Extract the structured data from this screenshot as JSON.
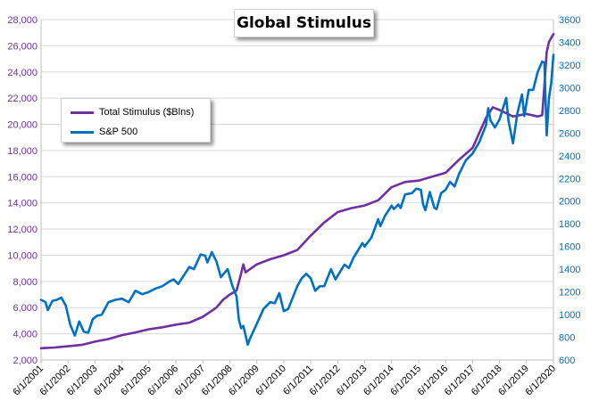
{
  "chart_data": {
    "type": "line",
    "title": "Global Stimulus",
    "xlabel": "",
    "ylabel": "",
    "x_tick_labels": [
      "6/1/2001",
      "6/1/2002",
      "6/1/2003",
      "6/1/2004",
      "6/1/2005",
      "6/1/2006",
      "6/1/2007",
      "6/1/2008",
      "6/1/2009",
      "6/1/2010",
      "6/1/2011",
      "6/1/2012",
      "6/1/2013",
      "6/1/2014",
      "6/1/2015",
      "6/1/2016",
      "6/1/2017",
      "6/1/2018",
      "6/1/2019",
      "6/1/2020"
    ],
    "y_left": {
      "min": 2000,
      "max": 28000,
      "step": 2000,
      "tick_labels": [
        "2,000",
        "4,000",
        "6,000",
        "8,000",
        "10,000",
        "12,000",
        "14,000",
        "16,000",
        "18,000",
        "20,000",
        "22,000",
        "24,000",
        "26,000",
        "28,000"
      ],
      "color": "#7030a0"
    },
    "y_right": {
      "min": 600,
      "max": 3600,
      "step": 200,
      "tick_labels": [
        "600",
        "800",
        "1000",
        "1200",
        "1400",
        "1600",
        "1800",
        "2000",
        "2200",
        "2400",
        "2600",
        "2800",
        "3000",
        "3200",
        "3400",
        "3600"
      ],
      "color": "#0070c0"
    },
    "legend": {
      "placement": "top-left"
    },
    "grid": "horizontal",
    "series": [
      {
        "name": "Total Stimulus ($Blns)",
        "axis": "left",
        "color": "#7030a0",
        "points": [
          [
            "2001-06",
            2900
          ],
          [
            "2001-12",
            2950
          ],
          [
            "2002-06",
            3050
          ],
          [
            "2002-12",
            3150
          ],
          [
            "2003-06",
            3400
          ],
          [
            "2003-12",
            3600
          ],
          [
            "2004-06",
            3900
          ],
          [
            "2004-12",
            4100
          ],
          [
            "2005-06",
            4350
          ],
          [
            "2005-12",
            4500
          ],
          [
            "2006-06",
            4700
          ],
          [
            "2006-12",
            4850
          ],
          [
            "2007-06",
            5300
          ],
          [
            "2007-12",
            6000
          ],
          [
            "2008-03",
            6600
          ],
          [
            "2008-06",
            7000
          ],
          [
            "2008-09",
            7300
          ],
          [
            "2008-11",
            8600
          ],
          [
            "2008-12",
            9300
          ],
          [
            "2009-01",
            8700
          ],
          [
            "2009-06",
            9300
          ],
          [
            "2009-12",
            9700
          ],
          [
            "2010-06",
            10000
          ],
          [
            "2010-12",
            10400
          ],
          [
            "2011-06",
            11500
          ],
          [
            "2011-12",
            12500
          ],
          [
            "2012-06",
            13300
          ],
          [
            "2012-12",
            13600
          ],
          [
            "2013-06",
            13800
          ],
          [
            "2013-12",
            14200
          ],
          [
            "2014-06",
            15200
          ],
          [
            "2014-12",
            15600
          ],
          [
            "2015-06",
            15700
          ],
          [
            "2015-12",
            16000
          ],
          [
            "2016-06",
            16300
          ],
          [
            "2016-12",
            17300
          ],
          [
            "2017-06",
            18200
          ],
          [
            "2017-12",
            20500
          ],
          [
            "2018-03",
            21300
          ],
          [
            "2018-06",
            21100
          ],
          [
            "2018-12",
            20600
          ],
          [
            "2019-06",
            20800
          ],
          [
            "2019-11",
            20600
          ],
          [
            "2020-01",
            20700
          ],
          [
            "2020-02",
            23000
          ],
          [
            "2020-03",
            25500
          ],
          [
            "2020-04",
            26300
          ],
          [
            "2020-06",
            26900
          ]
        ]
      },
      {
        "name": "S&P 500",
        "axis": "right",
        "color": "#0070c0",
        "points": [
          [
            "2001-06",
            1130
          ],
          [
            "2001-08",
            1110
          ],
          [
            "2001-09",
            1040
          ],
          [
            "2001-11",
            1120
          ],
          [
            "2002-01",
            1130
          ],
          [
            "2002-03",
            1150
          ],
          [
            "2002-05",
            1080
          ],
          [
            "2002-07",
            910
          ],
          [
            "2002-09",
            815
          ],
          [
            "2002-11",
            940
          ],
          [
            "2003-01",
            850
          ],
          [
            "2003-03",
            840
          ],
          [
            "2003-05",
            960
          ],
          [
            "2003-07",
            990
          ],
          [
            "2003-09",
            1000
          ],
          [
            "2003-12",
            1110
          ],
          [
            "2004-03",
            1130
          ],
          [
            "2004-06",
            1140
          ],
          [
            "2004-09",
            1110
          ],
          [
            "2004-12",
            1210
          ],
          [
            "2005-03",
            1180
          ],
          [
            "2005-06",
            1200
          ],
          [
            "2005-09",
            1230
          ],
          [
            "2005-12",
            1250
          ],
          [
            "2006-03",
            1290
          ],
          [
            "2006-05",
            1310
          ],
          [
            "2006-07",
            1270
          ],
          [
            "2006-12",
            1420
          ],
          [
            "2007-02",
            1400
          ],
          [
            "2007-05",
            1530
          ],
          [
            "2007-07",
            1520
          ],
          [
            "2007-08",
            1460
          ],
          [
            "2007-10",
            1550
          ],
          [
            "2007-12",
            1470
          ],
          [
            "2008-02",
            1330
          ],
          [
            "2008-05",
            1400
          ],
          [
            "2008-07",
            1260
          ],
          [
            "2008-09",
            1160
          ],
          [
            "2008-10",
            960
          ],
          [
            "2008-11",
            880
          ],
          [
            "2008-12",
            900
          ],
          [
            "2009-02",
            735
          ],
          [
            "2009-03",
            790
          ],
          [
            "2009-06",
            920
          ],
          [
            "2009-09",
            1050
          ],
          [
            "2009-12",
            1110
          ],
          [
            "2010-02",
            1100
          ],
          [
            "2010-04",
            1190
          ],
          [
            "2010-06",
            1030
          ],
          [
            "2010-08",
            1050
          ],
          [
            "2010-12",
            1250
          ],
          [
            "2011-02",
            1320
          ],
          [
            "2011-04",
            1360
          ],
          [
            "2011-06",
            1320
          ],
          [
            "2011-08",
            1210
          ],
          [
            "2011-10",
            1250
          ],
          [
            "2011-12",
            1250
          ],
          [
            "2012-03",
            1400
          ],
          [
            "2012-05",
            1310
          ],
          [
            "2012-09",
            1440
          ],
          [
            "2012-11",
            1410
          ],
          [
            "2013-01",
            1500
          ],
          [
            "2013-05",
            1630
          ],
          [
            "2013-06",
            1600
          ],
          [
            "2013-09",
            1680
          ],
          [
            "2013-12",
            1840
          ],
          [
            "2014-01",
            1780
          ],
          [
            "2014-03",
            1870
          ],
          [
            "2014-06",
            1960
          ],
          [
            "2014-07",
            1930
          ],
          [
            "2014-09",
            1970
          ],
          [
            "2014-10",
            1940
          ],
          [
            "2014-12",
            2060
          ],
          [
            "2015-03",
            2070
          ],
          [
            "2015-05",
            2110
          ],
          [
            "2015-07",
            2100
          ],
          [
            "2015-08",
            1970
          ],
          [
            "2015-09",
            1920
          ],
          [
            "2015-11",
            2080
          ],
          [
            "2016-01",
            1940
          ],
          [
            "2016-02",
            1930
          ],
          [
            "2016-04",
            2070
          ],
          [
            "2016-06",
            2100
          ],
          [
            "2016-08",
            2170
          ],
          [
            "2016-10",
            2130
          ],
          [
            "2016-12",
            2240
          ],
          [
            "2017-03",
            2360
          ],
          [
            "2017-06",
            2420
          ],
          [
            "2017-09",
            2520
          ],
          [
            "2017-12",
            2670
          ],
          [
            "2018-01",
            2820
          ],
          [
            "2018-02",
            2710
          ],
          [
            "2018-04",
            2650
          ],
          [
            "2018-06",
            2720
          ],
          [
            "2018-09",
            2910
          ],
          [
            "2018-10",
            2710
          ],
          [
            "2018-12",
            2510
          ],
          [
            "2019-02",
            2780
          ],
          [
            "2019-04",
            2940
          ],
          [
            "2019-05",
            2750
          ],
          [
            "2019-07",
            2980
          ],
          [
            "2019-09",
            2980
          ],
          [
            "2019-11",
            3140
          ],
          [
            "2020-01",
            3230
          ],
          [
            "2020-02",
            3220
          ],
          [
            "2020-03",
            2580
          ],
          [
            "2020-04",
            2910
          ],
          [
            "2020-05",
            3040
          ],
          [
            "2020-06",
            3290
          ]
        ]
      }
    ]
  }
}
